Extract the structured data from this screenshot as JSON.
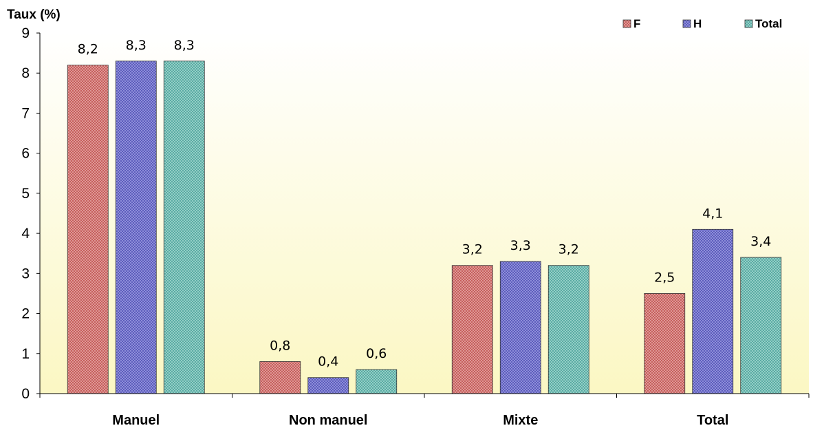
{
  "chart_data": {
    "type": "bar",
    "ylabel": "Taux (%)",
    "ylim": [
      0,
      9
    ],
    "yticks": [
      "0",
      "1",
      "2",
      "3",
      "4",
      "5",
      "6",
      "7",
      "8",
      "9"
    ],
    "categories": [
      "Manuel",
      "Non manuel",
      "Mixte",
      "Total"
    ],
    "series": [
      {
        "name": "F",
        "values": [
          8.2,
          0.8,
          3.2,
          2.5
        ],
        "labels": [
          "8,2",
          "0,8",
          "3,2",
          "2,5"
        ],
        "color": "#c0504d"
      },
      {
        "name": "H",
        "values": [
          8.3,
          0.4,
          3.3,
          4.1
        ],
        "labels": [
          "8,3",
          "0,4",
          "3,3",
          "4,1"
        ],
        "color": "#4f4fb5"
      },
      {
        "name": "Total",
        "values": [
          8.3,
          0.6,
          3.2,
          3.4
        ],
        "labels": [
          "8,3",
          "0,6",
          "3,2",
          "3,4"
        ],
        "color": "#4aa39a"
      }
    ],
    "legend_position": "top-right",
    "grid": false,
    "background": "gradient-white-to-pale-yellow"
  }
}
